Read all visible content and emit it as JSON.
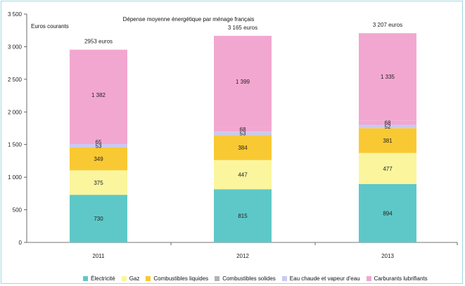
{
  "chart_data": {
    "type": "bar",
    "stacked": true,
    "title": "Dépense moyenne énergétique par ménage français",
    "unit_label": "Euros courants",
    "categories": [
      "2011",
      "2012",
      "2013"
    ],
    "totals_labels": [
      "2953 euros",
      "3 165 euros",
      "3 207 euros"
    ],
    "ylim": [
      0,
      3500
    ],
    "yticks": [
      "0",
      "500",
      "1 000",
      "1 500",
      "2 000",
      "2 500",
      "3 000",
      "3 500"
    ],
    "grid": false,
    "legend_position": "bottom",
    "series": [
      {
        "name": "Électricité",
        "color": "#5ec8c8",
        "values": [
          730,
          815,
          894
        ],
        "labels": [
          "730",
          "815",
          "894"
        ]
      },
      {
        "name": "Gaz",
        "color": "#fbf59e",
        "values": [
          375,
          447,
          477
        ],
        "labels": [
          "375",
          "447",
          "477"
        ]
      },
      {
        "name": "Combustibles liquides",
        "color": "#f9c933",
        "values": [
          349,
          384,
          381
        ],
        "labels": [
          "349",
          "384",
          "381"
        ]
      },
      {
        "name": "Combustibles solides",
        "color": "#b2b2b2",
        "values": [
          0,
          0,
          0
        ],
        "labels": [
          "",
          "",
          ""
        ]
      },
      {
        "name": "Eau chaude et vapeur d'eau",
        "color": "#c9c9f2",
        "values": [
          53,
          53,
          52
        ],
        "labels": [
          "53",
          "53",
          "52"
        ]
      },
      {
        "name": "Carburants  lubrifiants",
        "color": "#f2a7d0",
        "values": [
          65,
          68,
          68
        ],
        "labels": [
          "65",
          "68",
          "68"
        ]
      },
      {
        "name": "",
        "color": "#f2a7d0",
        "values": [
          1382,
          1399,
          1335
        ],
        "labels": [
          "1 382",
          "1 399",
          "1 335"
        ]
      }
    ]
  }
}
